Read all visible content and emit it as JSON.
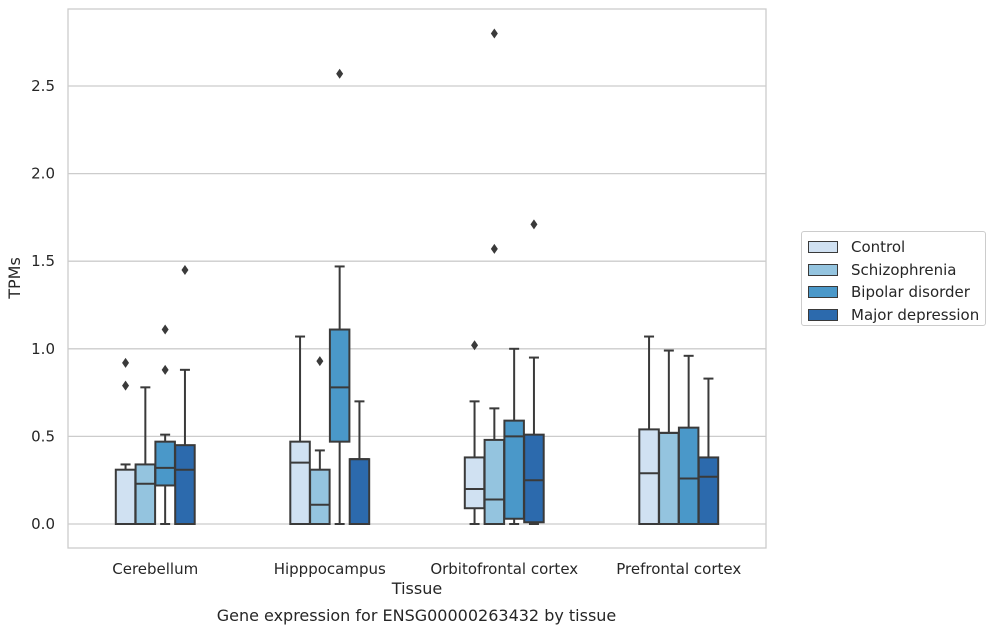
{
  "chart_data": {
    "type": "boxplot",
    "title": "",
    "xlabel": "Tissue",
    "ylabel": "TPMs",
    "ylim": [
      -0.14,
      2.9
    ],
    "yticks": [
      "0.0",
      "0.5",
      "1.0",
      "1.5",
      "2.0",
      "2.5"
    ],
    "grid": true,
    "legend_position": "right",
    "categories": [
      "Cerebellum",
      "Hipppocampus",
      "Orbitofrontal cortex",
      "Prefrontal cortex"
    ],
    "series": [
      {
        "name": "Control",
        "color": "#d0e1f2",
        "boxes": [
          {
            "whislo": 0.0,
            "q1": 0.0,
            "med": 0.0,
            "q3": 0.31,
            "whishi": 0.34,
            "fliers": [
              0.79,
              0.92
            ]
          },
          {
            "whislo": 0.0,
            "q1": 0.0,
            "med": 0.35,
            "q3": 0.47,
            "whishi": 1.07,
            "fliers": []
          },
          {
            "whislo": 0.0,
            "q1": 0.09,
            "med": 0.2,
            "q3": 0.38,
            "whishi": 0.7,
            "fliers": [
              1.02
            ]
          },
          {
            "whislo": 0.0,
            "q1": 0.0,
            "med": 0.29,
            "q3": 0.54,
            "whishi": 1.07,
            "fliers": []
          }
        ]
      },
      {
        "name": "Schizophrenia",
        "color": "#94c4df",
        "boxes": [
          {
            "whislo": 0.0,
            "q1": 0.0,
            "med": 0.23,
            "q3": 0.34,
            "whishi": 0.78,
            "fliers": []
          },
          {
            "whislo": 0.0,
            "q1": 0.0,
            "med": 0.11,
            "q3": 0.31,
            "whishi": 0.42,
            "fliers": [
              0.93
            ]
          },
          {
            "whislo": 0.0,
            "q1": 0.0,
            "med": 0.14,
            "q3": 0.48,
            "whishi": 0.66,
            "fliers": [
              1.57,
              2.8
            ]
          },
          {
            "whislo": 0.0,
            "q1": 0.0,
            "med": 0.52,
            "q3": 0.52,
            "whishi": 0.99,
            "fliers": []
          }
        ]
      },
      {
        "name": "Bipolar disorder",
        "color": "#4a98c9",
        "boxes": [
          {
            "whislo": 0.0,
            "q1": 0.22,
            "med": 0.32,
            "q3": 0.47,
            "whishi": 0.51,
            "fliers": [
              0.88,
              1.11
            ]
          },
          {
            "whislo": 0.0,
            "q1": 0.47,
            "med": 0.78,
            "q3": 1.11,
            "whishi": 1.47,
            "fliers": [
              2.57
            ]
          },
          {
            "whislo": 0.0,
            "q1": 0.03,
            "med": 0.5,
            "q3": 0.59,
            "whishi": 1.0,
            "fliers": []
          },
          {
            "whislo": 0.0,
            "q1": 0.0,
            "med": 0.26,
            "q3": 0.55,
            "whishi": 0.96,
            "fliers": []
          }
        ]
      },
      {
        "name": "Major depression",
        "color": "#2c6aad",
        "boxes": [
          {
            "whislo": 0.0,
            "q1": 0.0,
            "med": 0.31,
            "q3": 0.45,
            "whishi": 0.88,
            "fliers": [
              1.45
            ]
          },
          {
            "whislo": 0.0,
            "q1": 0.0,
            "med": 0.37,
            "q3": 0.37,
            "whishi": 0.7,
            "fliers": []
          },
          {
            "whislo": 0.0,
            "q1": 0.01,
            "med": 0.25,
            "q3": 0.51,
            "whishi": 0.95,
            "fliers": [
              1.71
            ]
          },
          {
            "whislo": 0.0,
            "q1": 0.0,
            "med": 0.27,
            "q3": 0.38,
            "whishi": 0.83,
            "fliers": []
          }
        ]
      }
    ]
  },
  "caption": "Gene expression for ENSG00000263432 by tissue"
}
